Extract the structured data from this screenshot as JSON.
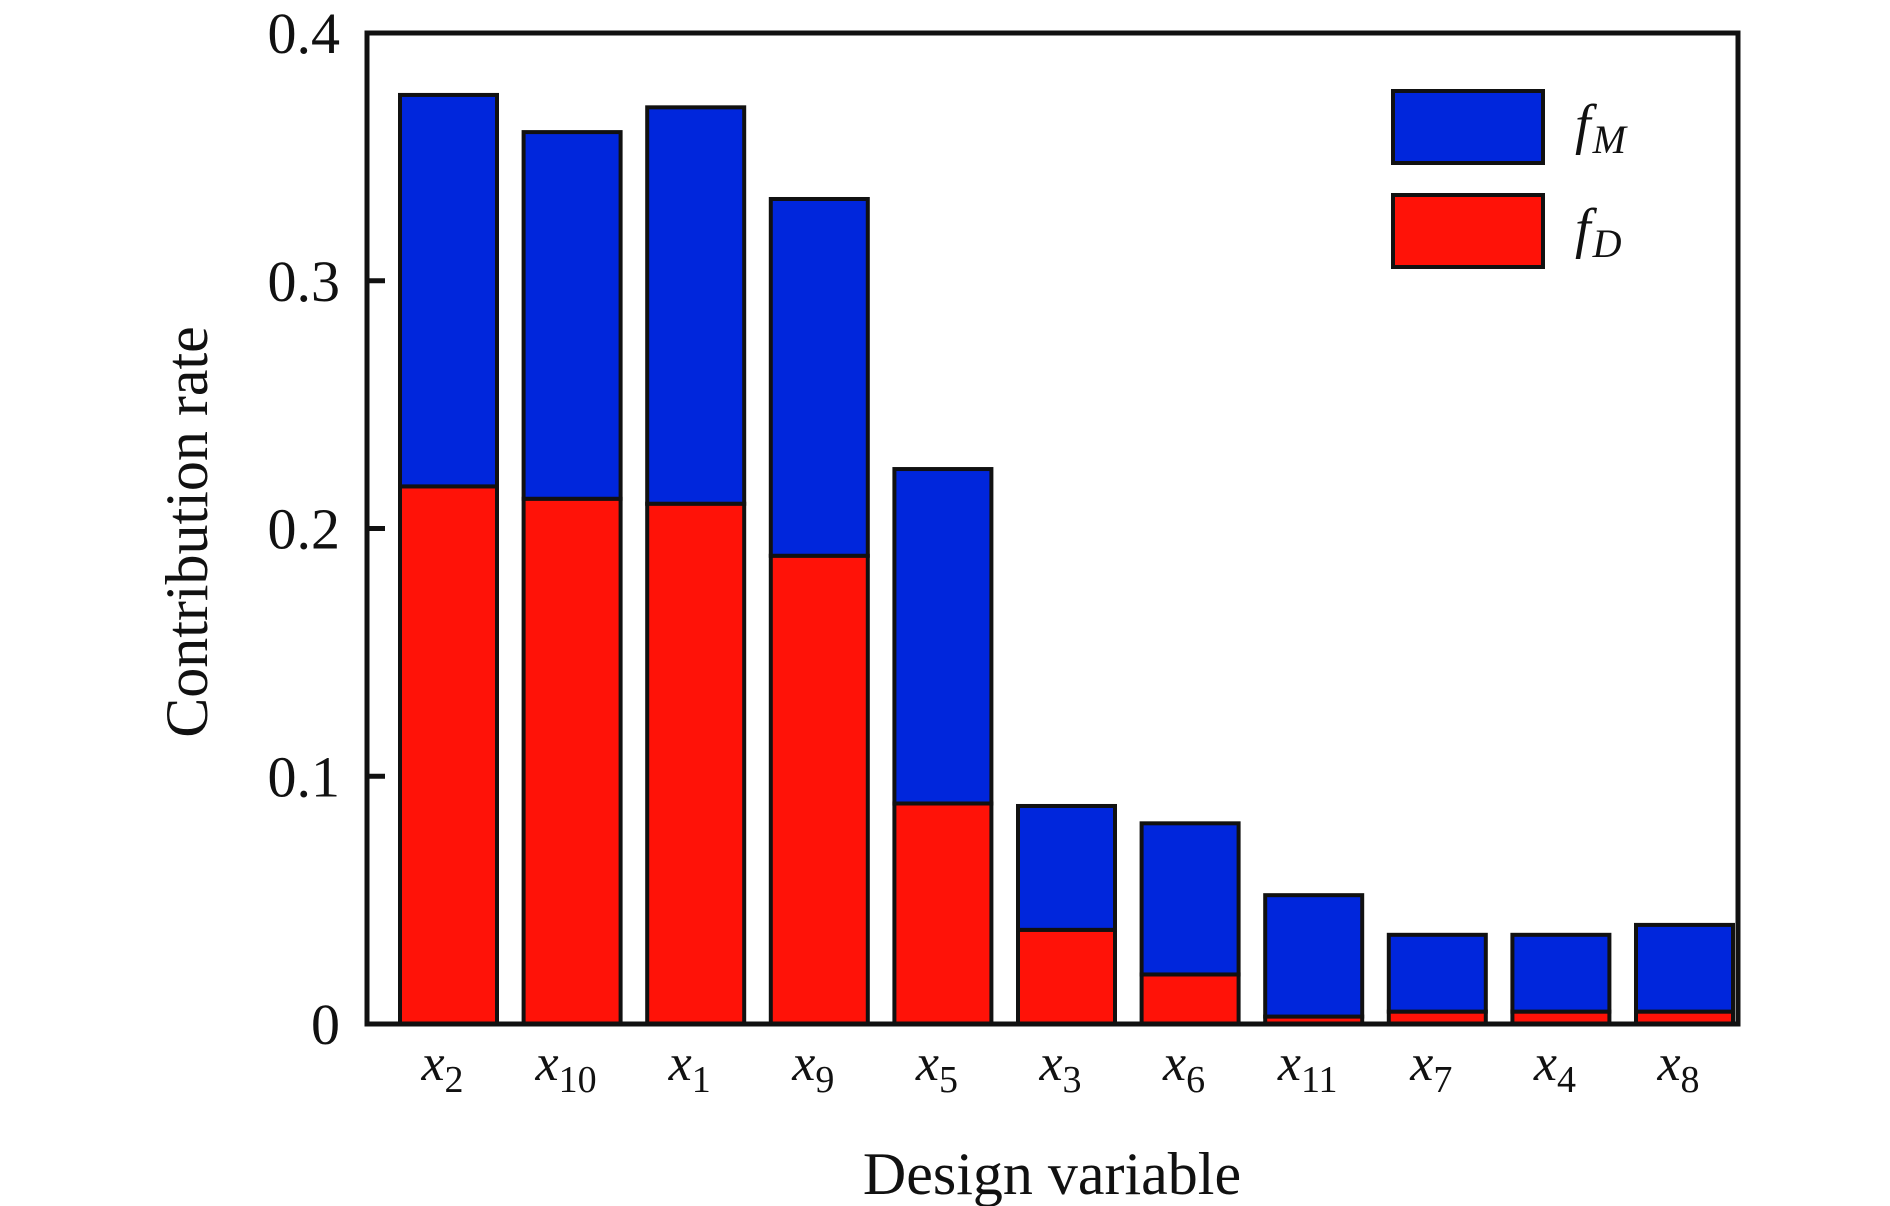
{
  "chart_data": {
    "type": "bar",
    "stacked": true,
    "title": "",
    "xlabel": "Design variable",
    "ylabel": "Contribution rate",
    "ylim": [
      0,
      0.4
    ],
    "yticks": [
      "0",
      "0.1",
      "0.2",
      "0.3",
      "0.4"
    ],
    "ytick_values": [
      0,
      0.1,
      0.2,
      0.3,
      0.4
    ],
    "categories": [
      {
        "base": "x",
        "sub": "2"
      },
      {
        "base": "x",
        "sub": "10"
      },
      {
        "base": "x",
        "sub": "1"
      },
      {
        "base": "x",
        "sub": "9"
      },
      {
        "base": "x",
        "sub": "5"
      },
      {
        "base": "x",
        "sub": "3"
      },
      {
        "base": "x",
        "sub": "6"
      },
      {
        "base": "x",
        "sub": "11"
      },
      {
        "base": "x",
        "sub": "7"
      },
      {
        "base": "x",
        "sub": "4"
      },
      {
        "base": "x",
        "sub": "8"
      }
    ],
    "category_labels": [
      "x2",
      "x10",
      "x1",
      "x9",
      "x5",
      "x3",
      "x6",
      "x11",
      "x7",
      "x4",
      "x8"
    ],
    "series": [
      {
        "name": "fD",
        "base": "f",
        "sub": "D",
        "color": "#ff1208",
        "values": [
          0.217,
          0.212,
          0.21,
          0.189,
          0.089,
          0.038,
          0.02,
          0.003,
          0.005,
          0.005,
          0.005
        ]
      },
      {
        "name": "fM",
        "base": "f",
        "sub": "M",
        "color": "#0026dc",
        "values": [
          0.158,
          0.148,
          0.16,
          0.144,
          0.135,
          0.05,
          0.061,
          0.049,
          0.031,
          0.031,
          0.035
        ]
      }
    ],
    "totals": [
      0.375,
      0.36,
      0.37,
      0.333,
      0.224,
      0.088,
      0.081,
      0.052,
      0.036,
      0.036,
      0.04
    ],
    "legend": {
      "position": "top-right",
      "order": [
        "fM",
        "fD"
      ]
    },
    "grid": false
  }
}
